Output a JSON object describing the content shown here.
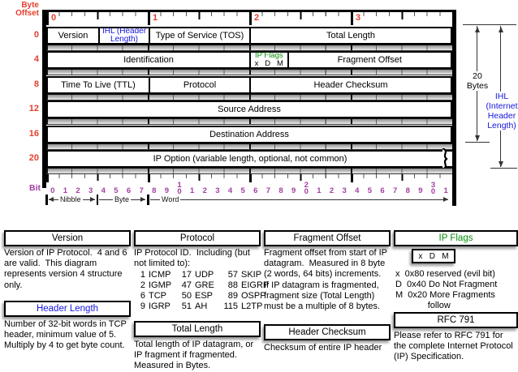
{
  "colors": {
    "red": "#e3402e",
    "purple": "#a23fa2",
    "blue": "#1414e0",
    "green": "#0b8e0b"
  },
  "diagram": {
    "byte_offset_label": "Byte\nOffset",
    "bit_label": "Bit",
    "byte_ruler": [
      "0",
      "1",
      "2",
      "3"
    ],
    "rows": [
      {
        "offset": "0",
        "cells": [
          {
            "label": "Version"
          },
          {
            "label": "IHL (Header Length)"
          },
          {
            "label": "Type of Service (TOS)"
          },
          {
            "label": "Total Length"
          }
        ]
      },
      {
        "offset": "4",
        "cells": [
          {
            "label": "Identification"
          },
          {
            "label": "IP Flags",
            "sub": "x   D   M"
          },
          {
            "label": "Fragment Offset"
          }
        ]
      },
      {
        "offset": "8",
        "cells": [
          {
            "label": "Time To Live (TTL)"
          },
          {
            "label": "Protocol"
          },
          {
            "label": "Header Checksum"
          }
        ]
      },
      {
        "offset": "12",
        "cells": [
          {
            "label": "Source Address"
          }
        ]
      },
      {
        "offset": "16",
        "cells": [
          {
            "label": "Destination Address"
          }
        ]
      },
      {
        "offset": "20",
        "cells": [
          {
            "label": "IP Option (variable length, optional, not common)"
          }
        ]
      }
    ],
    "bit_numbers": [
      "0",
      "1",
      "2",
      "3",
      "4",
      "5",
      "6",
      "7",
      "8",
      "9",
      "10",
      "1",
      "2",
      "3",
      "4",
      "5",
      "6",
      "7",
      "8",
      "9",
      "20",
      "1",
      "2",
      "3",
      "4",
      "5",
      "6",
      "7",
      "8",
      "9",
      "30",
      "1"
    ],
    "scale": [
      "Nibble",
      "Byte",
      "Word"
    ],
    "annotations": {
      "twenty_bytes": [
        "20",
        "Bytes"
      ],
      "ihl": [
        "IHL",
        "(Internet",
        "Header",
        "Length)"
      ]
    }
  },
  "notes": [
    {
      "title": "Version",
      "body": "Version of IP Protocol.  4 and 6 are valid.  This diagram represents version 4 structure only."
    },
    {
      "title": "Header Length",
      "body": "Number of 32-bit words in TCP header, minimum value of 5.  Multiply by 4 to get byte count."
    },
    {
      "title": "Protocol",
      "intro": "IP Protocol ID.  Including (but not limited to):",
      "table": [
        [
          "1",
          "ICMP",
          "17",
          "UDP",
          "57",
          "SKIP"
        ],
        [
          "2",
          "IGMP",
          "47",
          "GRE",
          "88",
          "EIGRP"
        ],
        [
          "6",
          "TCP",
          "50",
          "ESP",
          "89",
          "OSPF"
        ],
        [
          "9",
          "IGRP",
          "51",
          "AH",
          "115",
          "L2TP"
        ]
      ]
    },
    {
      "title": "Total Length",
      "body": "Total length of IP datagram, or IP fragment if fragmented. Measured in Bytes."
    },
    {
      "title": "Fragment Offset",
      "body": "Fragment offset from start of IP datagram.  Measured in 8 byte (2 words, 64 bits) increments.  If IP datagram is fragmented, fragment size (Total Length) must be a multiple of 8 bytes."
    },
    {
      "title": "Header Checksum",
      "body": "Checksum of entire IP header"
    },
    {
      "title": "IP Flags",
      "flag_box": "x   D   M",
      "lines": [
        "x  0x80 reserved (evil bit)",
        "D  0x40 Do Not Fragment",
        "M  0x20 More Fragments",
        "             follow"
      ]
    },
    {
      "title": "RFC 791",
      "body": "Please refer to RFC 791 for the complete Internet Protocol (IP) Specification."
    }
  ]
}
